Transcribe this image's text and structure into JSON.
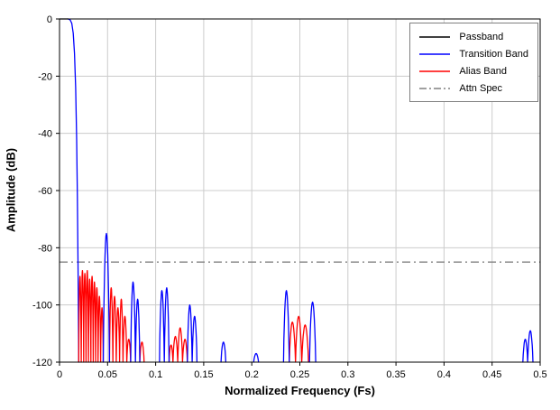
{
  "chart_data": {
    "type": "line",
    "title": "",
    "xlabel": "Normalized Frequency (Fs)",
    "ylabel": "Amplitude (dB)",
    "xlim": [
      0,
      0.5
    ],
    "ylim": [
      -120,
      0
    ],
    "grid": true,
    "xticks": [
      {
        "v": 0,
        "label": "0"
      },
      {
        "v": 0.05,
        "label": "0.05"
      },
      {
        "v": 0.1,
        "label": "0.1"
      },
      {
        "v": 0.15,
        "label": "0.15"
      },
      {
        "v": 0.2,
        "label": "0.2"
      },
      {
        "v": 0.25,
        "label": "0.25"
      },
      {
        "v": 0.3,
        "label": "0.3"
      },
      {
        "v": 0.35,
        "label": "0.35"
      },
      {
        "v": 0.4,
        "label": "0.4"
      },
      {
        "v": 0.45,
        "label": "0.45"
      },
      {
        "v": 0.5,
        "label": "0.5"
      }
    ],
    "yticks": [
      {
        "v": 0,
        "label": "0"
      },
      {
        "v": -20,
        "label": "-20"
      },
      {
        "v": -40,
        "label": "-40"
      },
      {
        "v": -60,
        "label": "-60"
      },
      {
        "v": -80,
        "label": "-80"
      },
      {
        "v": -100,
        "label": "-100"
      },
      {
        "v": -120,
        "label": "-120"
      }
    ],
    "legend": {
      "position": "top-right",
      "entries": [
        {
          "label": "Passband",
          "color": "#000000",
          "dash": "solid"
        },
        {
          "label": "Transition Band",
          "color": "#0000ff",
          "dash": "solid"
        },
        {
          "label": "Alias Band",
          "color": "#ff0000",
          "dash": "solid"
        },
        {
          "label": "Attn Spec",
          "color": "#808080",
          "dash": "dashdot"
        }
      ]
    },
    "attn_spec": {
      "db": -85,
      "color": "#808080",
      "style": "dashdot"
    },
    "colors": {
      "passband": "#000000",
      "transition": "#0000ff",
      "alias": "#ff0000",
      "grid": "#cccccc",
      "frame": "#000000"
    },
    "segments": [
      {
        "name": "passband",
        "color": "#000000",
        "type": "poly",
        "points": [
          [
            0,
            0
          ],
          [
            0.009,
            0
          ]
        ]
      },
      {
        "name": "transition-main-edge",
        "color": "#0000ff",
        "type": "poly",
        "points": [
          [
            0.009,
            0
          ],
          [
            0.011,
            -0.3
          ],
          [
            0.0128,
            -1.5
          ],
          [
            0.0143,
            -5
          ],
          [
            0.0156,
            -12
          ],
          [
            0.0168,
            -24
          ],
          [
            0.0178,
            -42
          ],
          [
            0.0186,
            -62
          ],
          [
            0.0192,
            -85
          ],
          [
            0.0197,
            -105
          ],
          [
            0.02,
            -120
          ]
        ]
      },
      {
        "name": "alias-band-lobes",
        "color": "#ff0000",
        "type": "lobes",
        "lobes": [
          [
            0.02,
            0.0226,
            -90
          ],
          [
            0.0226,
            0.0251,
            -88
          ],
          [
            0.0251,
            0.0276,
            -89
          ],
          [
            0.0276,
            0.0301,
            -88
          ],
          [
            0.0301,
            0.0326,
            -91
          ],
          [
            0.0326,
            0.0351,
            -90
          ],
          [
            0.0351,
            0.0376,
            -92
          ],
          [
            0.0376,
            0.0401,
            -94
          ],
          [
            0.0401,
            0.0428,
            -97
          ],
          [
            0.0428,
            0.0455,
            -101
          ],
          [
            0.052,
            0.0555,
            -94
          ],
          [
            0.0555,
            0.059,
            -97
          ],
          [
            0.059,
            0.0625,
            -101
          ],
          [
            0.0625,
            0.066,
            -98
          ],
          [
            0.066,
            0.07,
            -104
          ],
          [
            0.07,
            0.074,
            -112
          ],
          [
            0.0835,
            0.088,
            -113
          ],
          [
            0.114,
            0.118,
            -114
          ],
          [
            0.118,
            0.123,
            -111
          ],
          [
            0.123,
            0.128,
            -108
          ],
          [
            0.128,
            0.133,
            -112
          ],
          [
            0.239,
            0.2455,
            -106
          ],
          [
            0.2455,
            0.252,
            -104
          ],
          [
            0.252,
            0.259,
            -107
          ]
        ]
      },
      {
        "name": "transition-band-lobes",
        "color": "#0000ff",
        "type": "lobes",
        "lobes": [
          [
            0.0455,
            0.052,
            -75
          ],
          [
            0.074,
            0.079,
            -92
          ],
          [
            0.079,
            0.0835,
            -98
          ],
          [
            0.104,
            0.109,
            -95
          ],
          [
            0.109,
            0.114,
            -94
          ],
          [
            0.133,
            0.138,
            -100
          ],
          [
            0.138,
            0.143,
            -104
          ],
          [
            0.168,
            0.173,
            -113
          ],
          [
            0.202,
            0.207,
            -117
          ],
          [
            0.233,
            0.239,
            -95
          ],
          [
            0.26,
            0.2665,
            -99
          ],
          [
            0.482,
            0.487,
            -112
          ],
          [
            0.487,
            0.4925,
            -109
          ]
        ]
      }
    ]
  }
}
